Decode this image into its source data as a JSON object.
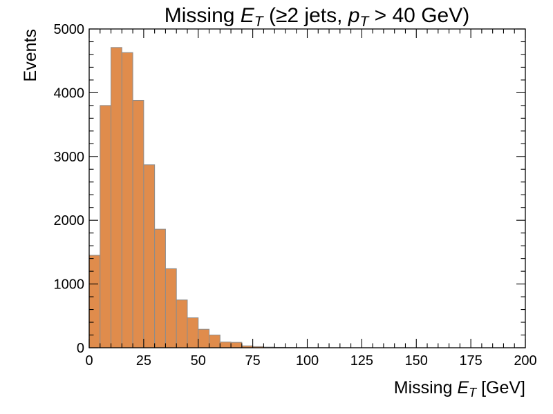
{
  "chart_data": {
    "type": "bar",
    "histogram": true,
    "title": {
      "prefix": "Missing ",
      "var": "E",
      "sub": "T",
      "middle": " (≥2 jets, ",
      "var2": "p",
      "sub2": "T",
      "suffix": " > 40 GeV)"
    },
    "xlabel": {
      "prefix": "Missing ",
      "var": "E",
      "sub": "T",
      "suffix": " [GeV]"
    },
    "ylabel": "Events",
    "xlim": [
      0,
      200
    ],
    "ylim": [
      0,
      5000
    ],
    "xticks": [
      "0",
      "25",
      "50",
      "75",
      "100",
      "125",
      "150",
      "175",
      "200"
    ],
    "yticks": [
      "0",
      "1000",
      "2000",
      "3000",
      "4000",
      "5000"
    ],
    "bin_width": 5,
    "bin_edges_start": 0,
    "values": [
      1450,
      3800,
      4710,
      4630,
      3880,
      2870,
      1860,
      1240,
      750,
      470,
      290,
      200,
      90,
      85,
      30,
      18,
      10,
      6,
      4,
      3,
      2,
      2,
      1,
      1,
      1,
      1,
      0,
      0,
      0,
      0,
      0,
      0,
      0,
      0,
      0,
      0,
      0,
      0,
      0,
      0
    ],
    "fill_color": "#e08c4c",
    "edge_color": "#8c8c8c",
    "grid": false
  }
}
